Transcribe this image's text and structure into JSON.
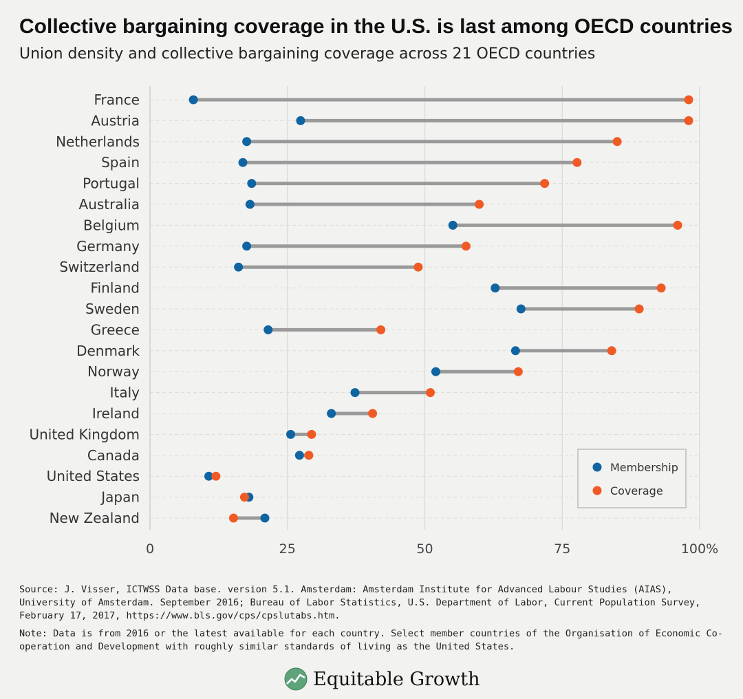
{
  "title": "Collective bargaining coverage in the U.S. is last among OECD countries",
  "subtitle": "Union density and collective bargaining coverage across 21 OECD countries",
  "chart_data": {
    "type": "dot-range",
    "xlim": [
      0,
      100
    ],
    "x_ticks": [
      "0",
      "25",
      "50",
      "75",
      "100%"
    ],
    "x_tick_values": [
      0,
      25,
      50,
      75,
      100
    ],
    "grid": true,
    "legend_position": "bottom-right",
    "categories": [
      "France",
      "Austria",
      "Netherlands",
      "Spain",
      "Portugal",
      "Australia",
      "Belgium",
      "Germany",
      "Switzerland",
      "Finland",
      "Sweden",
      "Greece",
      "Denmark",
      "Norway",
      "Italy",
      "Ireland",
      "United Kingdom",
      "Canada",
      "United States",
      "Japan",
      "New Zealand"
    ],
    "series": [
      {
        "name": "Membership",
        "color": "#0f64a2",
        "values": [
          7.9,
          27.4,
          17.6,
          16.9,
          18.5,
          18.2,
          55.1,
          17.6,
          16.1,
          62.8,
          67.5,
          21.5,
          66.5,
          52.0,
          37.3,
          33.0,
          25.6,
          27.2,
          10.7,
          18.0,
          20.9
        ]
      },
      {
        "name": "Coverage",
        "color": "#f05a24",
        "values": [
          98.0,
          98.0,
          85.0,
          77.7,
          71.8,
          59.9,
          96.0,
          57.5,
          48.8,
          93.0,
          89.0,
          42.0,
          84.0,
          67.0,
          51.0,
          40.5,
          29.4,
          28.9,
          12.0,
          17.2,
          15.2
        ]
      }
    ]
  },
  "source": "Source: J. Visser, ICTWSS Data base. version 5.1. Amsterdam: Amsterdam Institute for Advanced Labour Studies (AIAS), University of Amsterdam. September 2016; Bureau of Labor Statistics, U.S. Department of Labor, Current Population Survey, February 17, 2017, https://www.bls.gov/cps/cpslutabs.htm.",
  "note": "Note: Data is from 2016 or the latest available for each country. Select member countries of the Organisation of Economic Co-operation and Development with roughly similar standards of living as the United States.",
  "logo": {
    "text": "Equitable Growth",
    "icon": "equitable-growth-logo-icon"
  }
}
